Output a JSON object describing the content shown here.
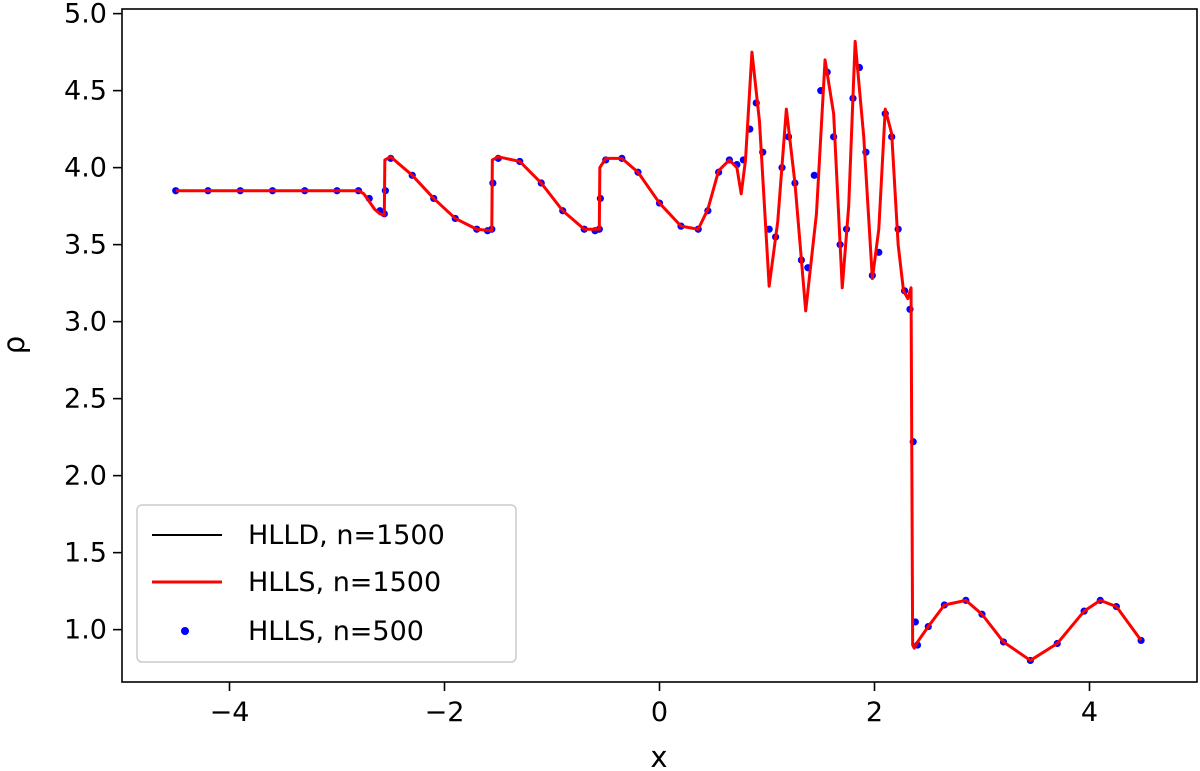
{
  "chart_data": {
    "type": "line",
    "title": "",
    "xlabel": "x",
    "ylabel": "ρ",
    "xlim": [
      -5,
      5
    ],
    "ylim": [
      0.66,
      5.03
    ],
    "xticks": [
      -4,
      -2,
      0,
      2,
      4
    ],
    "xtick_labels": [
      "−4",
      "−2",
      "0",
      "2",
      "4"
    ],
    "yticks": [
      1.0,
      1.5,
      2.0,
      2.5,
      3.0,
      3.5,
      4.0,
      4.5,
      5.0
    ],
    "ytick_labels": [
      "1.0",
      "1.5",
      "2.0",
      "2.5",
      "3.0",
      "3.5",
      "4.0",
      "4.5",
      "5.0"
    ],
    "grid": false,
    "legend_position": "lower-left",
    "colors": {
      "hlld": "#000000",
      "hlls": "#ff0000",
      "hlls500": "#0000ff"
    },
    "series": [
      {
        "name": "HLLD, n=1500",
        "style": "line",
        "color": "#000000",
        "x": [
          -4.5,
          -2.8,
          -2.75,
          -2.7,
          -2.65,
          -2.6,
          -2.56,
          -2.555,
          -2.5,
          -2.3,
          -2.1,
          -1.9,
          -1.7,
          -1.56,
          -1.555,
          -1.5,
          -1.3,
          -1.1,
          -0.9,
          -0.7,
          -0.56,
          -0.555,
          -0.5,
          -0.35,
          -0.2,
          0.0,
          0.2,
          0.36,
          0.45,
          0.55,
          0.65,
          0.72,
          0.76,
          0.8,
          0.86,
          0.93,
          1.02,
          1.1,
          1.18,
          1.26,
          1.36,
          1.46,
          1.54,
          1.62,
          1.7,
          1.76,
          1.82,
          1.9,
          1.98,
          2.04,
          2.1,
          2.16,
          2.22,
          2.27,
          2.31,
          2.34,
          2.355,
          2.37,
          2.4,
          2.5,
          2.65,
          2.85,
          3.0,
          3.2,
          3.45,
          3.7,
          3.95,
          4.1,
          4.25,
          4.48
        ],
        "y": [
          3.85,
          3.85,
          3.83,
          3.78,
          3.73,
          3.7,
          3.69,
          4.05,
          4.07,
          3.95,
          3.8,
          3.67,
          3.6,
          3.59,
          4.05,
          4.07,
          4.04,
          3.9,
          3.72,
          3.6,
          3.6,
          4.0,
          4.06,
          4.06,
          3.97,
          3.77,
          3.62,
          3.6,
          3.73,
          3.98,
          4.05,
          4.0,
          3.83,
          4.05,
          4.75,
          4.3,
          3.23,
          3.65,
          4.38,
          3.9,
          3.07,
          3.7,
          4.7,
          4.35,
          3.22,
          3.75,
          4.82,
          4.2,
          3.28,
          3.6,
          4.38,
          4.22,
          3.5,
          3.2,
          3.15,
          3.22,
          0.9,
          0.88,
          0.92,
          1.02,
          1.16,
          1.19,
          1.1,
          0.92,
          0.8,
          0.91,
          1.12,
          1.19,
          1.15,
          0.93
        ]
      },
      {
        "name": "HLLS, n=1500",
        "style": "line",
        "color": "#ff0000",
        "x": [
          -4.5,
          -2.8,
          -2.75,
          -2.7,
          -2.65,
          -2.6,
          -2.56,
          -2.555,
          -2.5,
          -2.3,
          -2.1,
          -1.9,
          -1.7,
          -1.56,
          -1.555,
          -1.5,
          -1.3,
          -1.1,
          -0.9,
          -0.7,
          -0.56,
          -0.555,
          -0.5,
          -0.35,
          -0.2,
          0.0,
          0.2,
          0.36,
          0.45,
          0.55,
          0.65,
          0.72,
          0.76,
          0.8,
          0.86,
          0.93,
          1.02,
          1.1,
          1.18,
          1.26,
          1.36,
          1.46,
          1.54,
          1.62,
          1.7,
          1.76,
          1.82,
          1.9,
          1.98,
          2.04,
          2.1,
          2.16,
          2.22,
          2.27,
          2.31,
          2.34,
          2.355,
          2.37,
          2.4,
          2.5,
          2.65,
          2.85,
          3.0,
          3.2,
          3.45,
          3.7,
          3.95,
          4.1,
          4.25,
          4.48
        ],
        "y": [
          3.85,
          3.85,
          3.83,
          3.78,
          3.73,
          3.7,
          3.69,
          4.05,
          4.07,
          3.95,
          3.8,
          3.67,
          3.6,
          3.59,
          4.05,
          4.07,
          4.04,
          3.9,
          3.72,
          3.6,
          3.6,
          4.0,
          4.06,
          4.06,
          3.97,
          3.77,
          3.62,
          3.6,
          3.73,
          3.98,
          4.05,
          4.0,
          3.83,
          4.05,
          4.75,
          4.3,
          3.23,
          3.65,
          4.38,
          3.9,
          3.07,
          3.7,
          4.7,
          4.35,
          3.22,
          3.75,
          4.82,
          4.2,
          3.28,
          3.6,
          4.38,
          4.22,
          3.5,
          3.2,
          3.15,
          3.22,
          0.9,
          0.88,
          0.92,
          1.02,
          1.16,
          1.19,
          1.1,
          0.92,
          0.8,
          0.91,
          1.12,
          1.19,
          1.15,
          0.93
        ]
      },
      {
        "name": "HLLS, n=500",
        "style": "markers",
        "color": "#0000ff",
        "x": [
          -4.5,
          -4.2,
          -3.9,
          -3.6,
          -3.3,
          -3.0,
          -2.8,
          -2.7,
          -2.6,
          -2.56,
          -2.55,
          -2.5,
          -2.3,
          -2.1,
          -1.9,
          -1.7,
          -1.6,
          -1.56,
          -1.55,
          -1.5,
          -1.3,
          -1.1,
          -0.9,
          -0.7,
          -0.6,
          -0.56,
          -0.55,
          -0.5,
          -0.35,
          -0.2,
          0.0,
          0.2,
          0.36,
          0.45,
          0.55,
          0.65,
          0.72,
          0.78,
          0.84,
          0.9,
          0.96,
          1.02,
          1.08,
          1.14,
          1.2,
          1.26,
          1.32,
          1.38,
          1.44,
          1.5,
          1.56,
          1.62,
          1.68,
          1.74,
          1.8,
          1.86,
          1.92,
          1.98,
          2.04,
          2.1,
          2.16,
          2.22,
          2.28,
          2.33,
          2.36,
          2.38,
          2.4,
          2.5,
          2.65,
          2.85,
          3.0,
          3.2,
          3.45,
          3.7,
          3.95,
          4.1,
          4.25,
          4.48
        ],
        "y": [
          3.85,
          3.85,
          3.85,
          3.85,
          3.85,
          3.85,
          3.85,
          3.8,
          3.72,
          3.7,
          3.85,
          4.06,
          3.95,
          3.8,
          3.67,
          3.6,
          3.59,
          3.6,
          3.9,
          4.06,
          4.04,
          3.9,
          3.72,
          3.6,
          3.59,
          3.6,
          3.8,
          4.05,
          4.06,
          3.97,
          3.77,
          3.62,
          3.6,
          3.72,
          3.97,
          4.05,
          4.02,
          4.05,
          4.25,
          4.42,
          4.1,
          3.6,
          3.55,
          4.0,
          4.2,
          3.9,
          3.4,
          3.35,
          3.95,
          4.5,
          4.62,
          4.2,
          3.5,
          3.6,
          4.45,
          4.65,
          4.1,
          3.3,
          3.45,
          4.35,
          4.2,
          3.6,
          3.2,
          3.08,
          2.22,
          1.05,
          0.9,
          1.02,
          1.16,
          1.19,
          1.1,
          0.92,
          0.8,
          0.91,
          1.12,
          1.19,
          1.15,
          0.93
        ]
      }
    ]
  }
}
